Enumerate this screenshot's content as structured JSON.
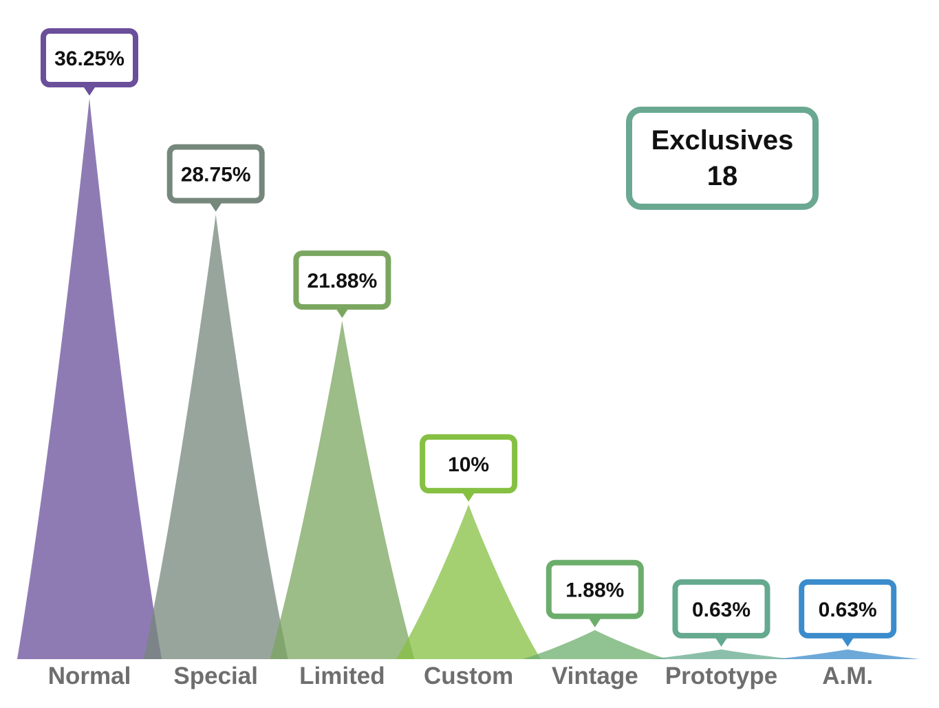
{
  "chart_data": {
    "type": "area",
    "categories": [
      "Normal",
      "Special",
      "Limited",
      "Custom",
      "Vintage",
      "Prototype",
      "A.M."
    ],
    "values": [
      36.25,
      28.75,
      21.88,
      10,
      1.88,
      0.63,
      0.63
    ],
    "value_labels": [
      "36.25%",
      "28.75%",
      "21.88%",
      "10%",
      "1.88%",
      "0.63%",
      "0.63%"
    ],
    "colors": [
      "#6a4f9b",
      "#76877c",
      "#7ba660",
      "#85c043",
      "#6cad6c",
      "#65a98f",
      "#3b8ccc"
    ],
    "ylim": [
      0,
      36.25
    ],
    "grid": false,
    "legend": "none"
  },
  "summary": {
    "label": "Exclusives",
    "value": "18",
    "border_color": "#6aa892"
  }
}
